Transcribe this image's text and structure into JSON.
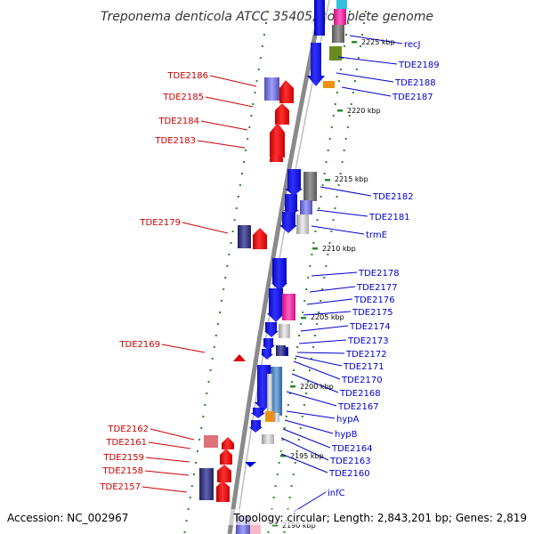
{
  "title": "Treponema denticola ATCC 35405, complete genome",
  "footer": {
    "accession": "Accession: NC_002967",
    "topology": "Topology: circular; Length: 2,843,201 bp; Genes: 2,819"
  },
  "colors": {
    "forward": "#e00000",
    "reverse": "#0000d0",
    "forward_label": "#cc0000",
    "reverse_label": "#0000cc",
    "backbone": "#8a8a8a",
    "tick": "#2a8a2a"
  },
  "scale_labels": [
    {
      "text": "2225 kbp"
    },
    {
      "text": "2220 kbp"
    },
    {
      "text": "2215 kbp"
    },
    {
      "text": "2210 kbp"
    },
    {
      "text": "2205 kbp"
    },
    {
      "text": "2200 kbp"
    },
    {
      "text": "2195 kbp"
    },
    {
      "text": "2190 kbp"
    }
  ],
  "labels_left": [
    {
      "text": "TDE2186"
    },
    {
      "text": "TDE2185"
    },
    {
      "text": "TDE2184"
    },
    {
      "text": "TDE2183"
    },
    {
      "text": "TDE2179"
    },
    {
      "text": "TDE2169"
    },
    {
      "text": "TDE2162"
    },
    {
      "text": "TDE2161"
    },
    {
      "text": "TDE2159"
    },
    {
      "text": "TDE2158"
    },
    {
      "text": "TDE2157"
    }
  ],
  "labels_right": [
    {
      "text": "recJ"
    },
    {
      "text": "TDE2189"
    },
    {
      "text": "TDE2188"
    },
    {
      "text": "TDE2187"
    },
    {
      "text": "TDE2182"
    },
    {
      "text": "TDE2181"
    },
    {
      "text": "trmE"
    },
    {
      "text": "TDE2178"
    },
    {
      "text": "TDE2177"
    },
    {
      "text": "TDE2176"
    },
    {
      "text": "TDE2175"
    },
    {
      "text": "TDE2174"
    },
    {
      "text": "TDE2173"
    },
    {
      "text": "TDE2172"
    },
    {
      "text": "TDE2171"
    },
    {
      "text": "TDE2170"
    },
    {
      "text": "TDE2168"
    },
    {
      "text": "TDE2167"
    },
    {
      "text": "hypA"
    },
    {
      "text": "hypB"
    },
    {
      "text": "TDE2164"
    },
    {
      "text": "TDE2163"
    },
    {
      "text": "TDE2160"
    },
    {
      "text": "infC"
    }
  ]
}
